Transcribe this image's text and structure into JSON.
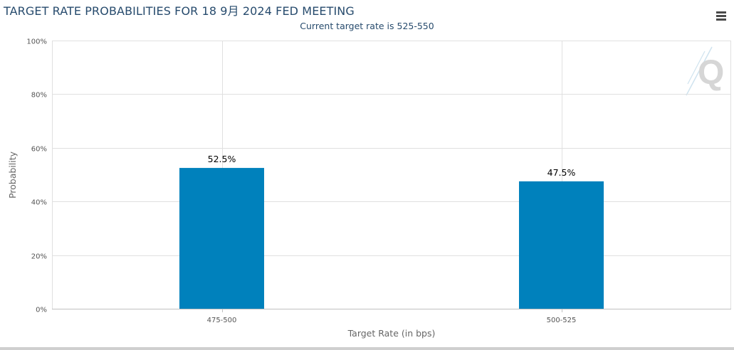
{
  "chart_data": {
    "type": "bar",
    "title": "TARGET RATE PROBABILITIES FOR 18 9月 2024 FED MEETING",
    "subtitle": "Current target rate is 525-550",
    "xlabel": "Target Rate (in bps)",
    "ylabel": "Probability",
    "categories": [
      "475-500",
      "500-525"
    ],
    "values": [
      52.5,
      47.5
    ],
    "data_labels": [
      "52.5%",
      "47.5%"
    ],
    "ylim": [
      0,
      100
    ],
    "y_ticks": [
      0,
      20,
      40,
      60,
      80,
      100
    ],
    "y_tick_labels": [
      "0%",
      "20%",
      "40%",
      "60%",
      "80%",
      "100%"
    ],
    "grid": true,
    "legend": "none",
    "bar_color": "#0081bc"
  },
  "icons": {
    "menu": "hamburger-menu-icon",
    "watermark": "quikstrike-q-logo"
  },
  "colors": {
    "title": "#274b6d",
    "grid": "#e0e0e0",
    "axis": "#c0c0c0",
    "watermark": "#d6d6d6"
  }
}
